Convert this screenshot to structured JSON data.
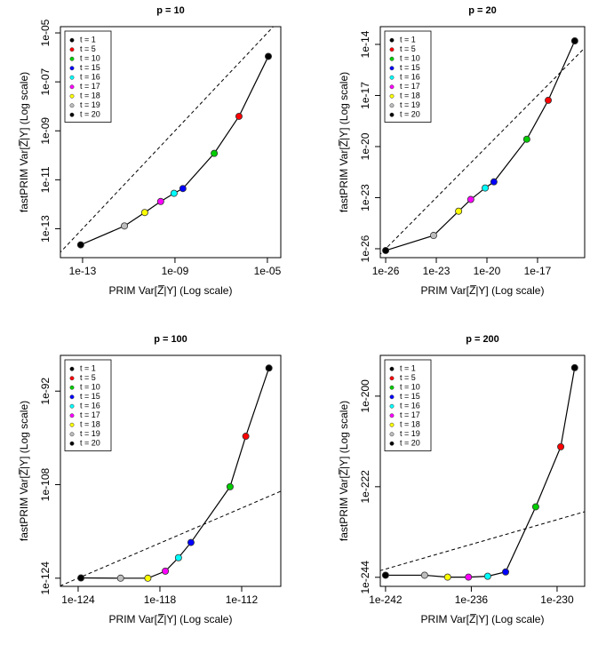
{
  "chart_data": [
    {
      "type": "line",
      "title": "p = 10",
      "x_label": "PRIM  Var[Z̅|Y]   (Log scale)",
      "y_label": "fastPRIM  Var[Z̅|Y]   (Log scale)",
      "xlog": true,
      "ylog": true,
      "diagonal": true,
      "xlim": [
        1.1e-14,
        3.8e-05
      ],
      "ylim": [
        6.6e-15,
        1.8e-05
      ],
      "xticks": [
        {
          "value": 1e-13,
          "label": "1e-13"
        },
        {
          "value": 1e-09,
          "label": "1e-09"
        },
        {
          "value": 1e-05,
          "label": "1e-05"
        }
      ],
      "yticks": [
        {
          "value": 1e-13,
          "label": "1e-13"
        },
        {
          "value": 1e-11,
          "label": "1e-11"
        },
        {
          "value": 1e-09,
          "label": "1e-09"
        },
        {
          "value": 1e-07,
          "label": "1e-07"
        },
        {
          "value": 1e-05,
          "label": "1e-05"
        }
      ],
      "labels": [
        "t = 1",
        "t = 5",
        "t = 10",
        "t = 15",
        "t = 16",
        "t = 17",
        "t = 18",
        "t = 19",
        "t = 20"
      ],
      "colors": [
        "#000000",
        "#ff0000",
        "#00cd00",
        "#0000ff",
        "#00ffff",
        "#ff00ff",
        "#ffff00",
        "#bebebe",
        "#000000"
      ],
      "x": [
        1.1e-05,
        5.9e-07,
        5e-08,
        2.2e-09,
        9.1e-10,
        2.4e-10,
        4.9e-11,
        6.5e-12,
        8.3e-14
      ],
      "values": [
        1.1e-06,
        3.9e-09,
        1.2e-10,
        4.4e-12,
        2.8e-12,
        1.3e-12,
        4.6e-13,
        1.3e-13,
        2.2e-14
      ]
    },
    {
      "type": "line",
      "title": "p = 20",
      "x_label": "PRIM  Var[Z̅|Y]   (Log scale)",
      "y_label": "fastPRIM  Var[Z̅|Y]   (Log scale)",
      "xlog": true,
      "ylog": true,
      "diagonal": true,
      "xlim": [
        4.8e-27,
        6.2e-15
      ],
      "ylim": [
        3e-27,
        1.1e-13
      ],
      "xticks": [
        {
          "value": 1e-26,
          "label": "1e-26"
        },
        {
          "value": 1e-23,
          "label": "1e-23"
        },
        {
          "value": 1e-20,
          "label": "1e-20"
        },
        {
          "value": 1e-17,
          "label": "1e-17"
        }
      ],
      "yticks": [
        {
          "value": 1e-26,
          "label": "1e-26"
        },
        {
          "value": 1e-23,
          "label": "1e-23"
        },
        {
          "value": 1e-20,
          "label": "1e-20"
        },
        {
          "value": 1e-17,
          "label": "1e-17"
        },
        {
          "value": 1e-14,
          "label": "1e-14"
        }
      ],
      "labels": [
        "t = 1",
        "t = 5",
        "t = 10",
        "t = 15",
        "t = 16",
        "t = 17",
        "t = 18",
        "t = 19",
        "t = 20"
      ],
      "colors": [
        "#000000",
        "#ff0000",
        "#00cd00",
        "#0000ff",
        "#00ffff",
        "#ff00ff",
        "#ffff00",
        "#bebebe",
        "#000000"
      ],
      "x": [
        1.6e-15,
        4.3e-17,
        2.3e-18,
        2.6e-20,
        7.9e-21,
        1.1e-21,
        2.1e-22,
        6.9e-24,
        1e-26
      ],
      "values": [
        1.6e-14,
        5.2e-18,
        2.7e-20,
        8.5e-23,
        3.7e-23,
        7.8e-24,
        1.6e-24,
        6e-26,
        7.9e-27
      ]
    },
    {
      "type": "line",
      "title": "p = 100",
      "x_label": "PRIM  Var[Z̅|Y]   (Log scale)",
      "y_label": "fastPRIM  Var[Z̅|Y]   (Log scale)",
      "xlog": true,
      "ylog": true,
      "diagonal": true,
      "xlim": [
        5e-126,
        7.4e-110
      ],
      "ylim": [
        4e-126,
        1.3e-86
      ],
      "xticks": [
        {
          "value": 1e-124,
          "label": "1e-124"
        },
        {
          "value": 1e-118,
          "label": "1e-118"
        },
        {
          "value": 1e-112,
          "label": "1e-112"
        }
      ],
      "yticks": [
        {
          "value": 1e-124,
          "label": "1e-124"
        },
        {
          "value": 1e-108,
          "label": "1e-108"
        },
        {
          "value": 1e-92,
          "label": "1e-92"
        }
      ],
      "labels": [
        "t = 1",
        "t = 5",
        "t = 10",
        "t = 15",
        "t = 16",
        "t = 17",
        "t = 18",
        "t = 19",
        "t = 20"
      ],
      "colors": [
        "#000000",
        "#ff0000",
        "#00cd00",
        "#0000ff",
        "#00ffff",
        "#ff00ff",
        "#ffff00",
        "#bebebe",
        "#000000"
      ],
      "x": [
        1e-110,
        2e-112,
        1.4e-113,
        1.9e-116,
        2.3e-117,
        2.5e-118,
        1.3e-119,
        1.3e-121,
        1.6e-124
      ],
      "values": [
        8.7e-89,
        1.9e-100,
        4.4e-109,
        1.3e-118,
        3.2e-121,
        1.6e-123,
        1e-124,
        1e-124,
        1.1e-124
      ]
    },
    {
      "type": "line",
      "title": "p = 200",
      "x_label": "PRIM  Var[Z̅|Y]   (Log scale)",
      "y_label": "fastPRIM  Var[Z̅|Y]   (Log scale)",
      "xlog": true,
      "ylog": true,
      "diagonal": true,
      "xlim": [
        4.3e-243,
        8.5e-229
      ],
      "ylim": [
        6.3e-247,
        7.9e-191
      ],
      "xticks": [
        {
          "value": 1e-242,
          "label": "1e-242"
        },
        {
          "value": 1e-236,
          "label": "1e-236"
        },
        {
          "value": 1e-230,
          "label": "1e-230"
        }
      ],
      "yticks": [
        {
          "value": 1e-244,
          "label": "1e-244"
        },
        {
          "value": 1e-222,
          "label": "1e-222"
        },
        {
          "value": 1e-200,
          "label": "1e-200"
        }
      ],
      "labels": [
        "t = 1",
        "t = 5",
        "t = 10",
        "t = 15",
        "t = 16",
        "t = 17",
        "t = 18",
        "t = 19",
        "t = 20"
      ],
      "colors": [
        "#000000",
        "#ff0000",
        "#00cd00",
        "#0000ff",
        "#00ffff",
        "#ff00ff",
        "#ffff00",
        "#bebebe",
        "#000000"
      ],
      "x": [
        1.7e-229,
        1.8e-230,
        3.2e-232,
        2.5e-234,
        1.4e-235,
        6.3e-237,
        2.2e-238,
        5.4e-240,
        1e-242
      ],
      "values": [
        7.9e-194,
        5e-213,
        1.3e-227,
        2e-243,
        1.8e-244,
        1.1e-244,
        1.1e-244,
        3.2e-244,
        3.2e-244
      ]
    }
  ]
}
